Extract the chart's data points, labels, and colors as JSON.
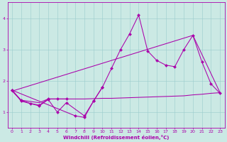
{
  "xlabel": "Windchill (Refroidissement éolien,°C)",
  "background_color": "#cbe9e4",
  "line_color": "#aa00aa",
  "grid_color": "#99cccc",
  "x": [
    0,
    1,
    2,
    3,
    4,
    5,
    6,
    7,
    8,
    9,
    10,
    11,
    12,
    13,
    14,
    15,
    16,
    17,
    18,
    19,
    20,
    21,
    22,
    23
  ],
  "zigzag": [
    1.7,
    null,
    null,
    null,
    null,
    null,
    null,
    0.88,
    0.83,
    1.35,
    1.8,
    2.4,
    3.0,
    3.5,
    4.1,
    2.95,
    2.65,
    2.5,
    2.45,
    3.0,
    3.45,
    2.6,
    1.9,
    1.6
  ],
  "early1": [
    1.7,
    1.35,
    null,
    1.2,
    1.4,
    1.0,
    1.3,
    null,
    0.88,
    1.35,
    1.8,
    null,
    null,
    null,
    null,
    null,
    null,
    null,
    null,
    null,
    null,
    null,
    null,
    null
  ],
  "early2": [
    1.7,
    1.38,
    1.28,
    1.22,
    1.42,
    1.42,
    1.42,
    null,
    null,
    null,
    null,
    null,
    null,
    null,
    null,
    null,
    null,
    null,
    null,
    null,
    null,
    null,
    null,
    null
  ],
  "flat": [
    1.67,
    1.38,
    1.34,
    1.3,
    1.42,
    1.42,
    1.42,
    1.42,
    1.42,
    1.43,
    1.44,
    1.44,
    1.45,
    1.46,
    1.47,
    1.48,
    1.49,
    1.5,
    1.51,
    1.52,
    1.55,
    1.57,
    1.6,
    1.62
  ],
  "diagonal": [
    1.67,
    null,
    null,
    null,
    null,
    null,
    null,
    null,
    null,
    null,
    null,
    null,
    null,
    null,
    null,
    null,
    null,
    null,
    null,
    null,
    3.45,
    null,
    null,
    1.62
  ],
  "ylim": [
    0.5,
    4.5
  ],
  "xlim": [
    -0.5,
    23.5
  ],
  "yticks": [
    1,
    2,
    3,
    4
  ],
  "xticks": [
    0,
    1,
    2,
    3,
    4,
    5,
    6,
    7,
    8,
    9,
    10,
    11,
    12,
    13,
    14,
    15,
    16,
    17,
    18,
    19,
    20,
    21,
    22,
    23
  ],
  "tick_fontsize": 4.5,
  "xlabel_fontsize": 5.0,
  "lw": 0.75,
  "ms": 2.2
}
